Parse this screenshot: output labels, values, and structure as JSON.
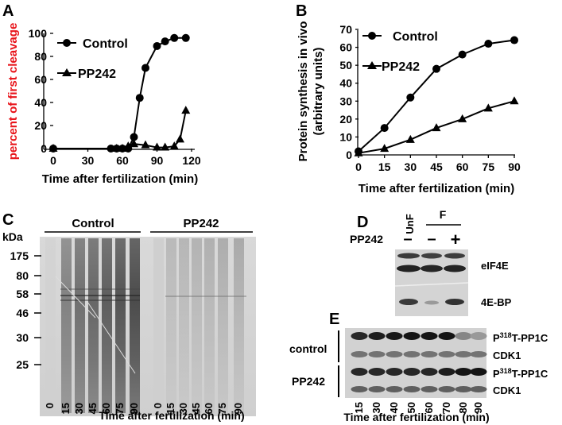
{
  "panels": {
    "A": {
      "letter": "A"
    },
    "B": {
      "letter": "B"
    },
    "C": {
      "letter": "C"
    },
    "D": {
      "letter": "D"
    },
    "E": {
      "letter": "E"
    }
  },
  "chart_data": [
    {
      "panel": "A",
      "type": "line",
      "xlabel": "Time after fertilization (min)",
      "ylabel": "percent of first cleavage",
      "ylabel_color": "#e8151b",
      "xlim": [
        0,
        120
      ],
      "ylim": [
        0,
        100
      ],
      "xticks": [
        "0",
        "30",
        "60",
        "90",
        "120"
      ],
      "yticks": [
        "0",
        "20",
        "40",
        "60",
        "80",
        "100"
      ],
      "legend": "top-left",
      "series": [
        {
          "name": "Control",
          "marker": "circle",
          "points": [
            [
              0,
              0
            ],
            [
              50,
              0
            ],
            [
              55,
              0
            ],
            [
              60,
              0
            ],
            [
              65,
              0
            ],
            [
              70,
              10
            ],
            [
              75,
              44
            ],
            [
              80,
              70
            ],
            [
              90,
              89
            ],
            [
              97,
              93
            ],
            [
              105,
              96
            ],
            [
              115,
              96
            ]
          ]
        },
        {
          "name": "PP242",
          "marker": "triangle",
          "points": [
            [
              0,
              0
            ],
            [
              55,
              0
            ],
            [
              60,
              0
            ],
            [
              65,
              2
            ],
            [
              70,
              4
            ],
            [
              80,
              3
            ],
            [
              90,
              1
            ],
            [
              97,
              1
            ],
            [
              105,
              2
            ],
            [
              110,
              8
            ],
            [
              115,
              33
            ]
          ]
        }
      ]
    },
    {
      "panel": "B",
      "type": "line",
      "xlabel": "Time after fertilization (min)",
      "ylabel_line1": "Protein synthesis in vivo",
      "ylabel_line2": "(arbitrary units)",
      "xlim": [
        0,
        90
      ],
      "ylim": [
        0,
        70
      ],
      "xticks": [
        "0",
        "15",
        "30",
        "45",
        "60",
        "75",
        "90"
      ],
      "yticks": [
        "0",
        "10",
        "20",
        "30",
        "40",
        "50",
        "60",
        "70"
      ],
      "legend": "top-left",
      "series": [
        {
          "name": "Control",
          "marker": "circle",
          "points": [
            [
              0,
              2
            ],
            [
              15,
              15
            ],
            [
              30,
              32
            ],
            [
              45,
              48
            ],
            [
              60,
              56
            ],
            [
              75,
              62
            ],
            [
              90,
              64
            ]
          ]
        },
        {
          "name": "PP242",
          "marker": "triangle",
          "points": [
            [
              0,
              1
            ],
            [
              15,
              3.5
            ],
            [
              30,
              8.5
            ],
            [
              45,
              15
            ],
            [
              60,
              20
            ],
            [
              75,
              26
            ],
            [
              90,
              30
            ]
          ]
        }
      ]
    }
  ],
  "gel_c": {
    "kda_label": "kDa",
    "markers": [
      "175",
      "80",
      "58",
      "46",
      "30",
      "25"
    ],
    "group_control": "Control",
    "group_pp242": "PP242",
    "lanes": [
      "0",
      "15",
      "30",
      "45",
      "60",
      "75",
      "90",
      "0",
      "15",
      "30",
      "45",
      "60",
      "75",
      "90"
    ],
    "xlabel": "Time after fertilization (min)"
  },
  "blot_d": {
    "lane_unf": "UnF",
    "lane_f": "F",
    "row_label": "PP242",
    "signs": [
      "–",
      "–",
      "+"
    ],
    "bands": [
      "eIF4E",
      "4E-BP"
    ]
  },
  "blot_e": {
    "group_control": "control",
    "group_pp242": "PP242",
    "band_labels": [
      "P318T-PP1C",
      "CDK1",
      "P318T-PP1C",
      "CDK1"
    ],
    "p_prefix": "P",
    "p_sup": "318",
    "p_rest": "T-PP1C",
    "cdk1": "CDK1",
    "lanes": [
      "15",
      "30",
      "40",
      "50",
      "60",
      "70",
      "80",
      "90"
    ],
    "xlabel": "Time after fertilization (min)"
  }
}
